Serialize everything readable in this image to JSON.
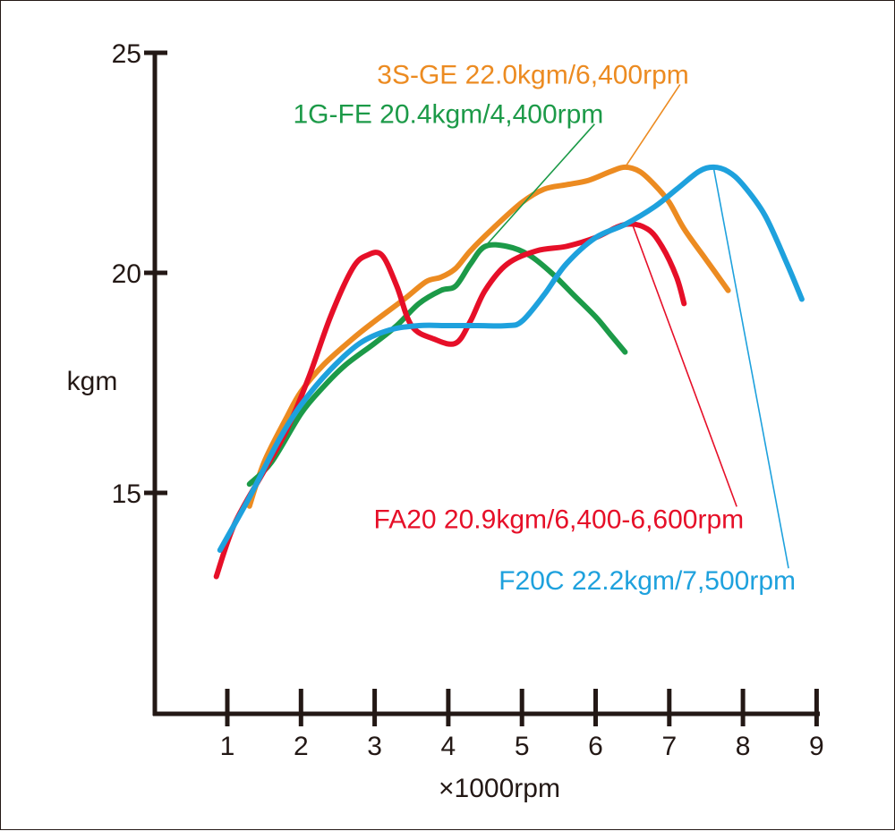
{
  "chart_data": {
    "type": "line",
    "xlabel": "×1000rpm",
    "ylabel": "kgm",
    "xlim": [
      0,
      9
    ],
    "ylim": [
      10,
      25
    ],
    "x_ticks": [
      "1",
      "2",
      "3",
      "4",
      "5",
      "6",
      "7",
      "8",
      "9"
    ],
    "y_ticks": [
      "15",
      "20",
      "25"
    ],
    "grid": false,
    "series": [
      {
        "name": "3S-GE",
        "label": "3S-GE 22.0kgm/6,400rpm",
        "color": "#ec8b21",
        "x": [
          1.3,
          1.5,
          1.8,
          2.0,
          2.3,
          2.7,
          3.0,
          3.4,
          3.7,
          3.9,
          4.1,
          4.3,
          4.6,
          5.0,
          5.3,
          5.6,
          5.9,
          6.2,
          6.4,
          6.6,
          6.8,
          7.0,
          7.2,
          7.5,
          7.8
        ],
        "y": [
          14.7,
          15.7,
          16.7,
          17.3,
          17.9,
          18.5,
          18.9,
          19.4,
          19.8,
          19.9,
          20.1,
          20.5,
          21.0,
          21.6,
          21.9,
          22.0,
          22.1,
          22.3,
          22.4,
          22.3,
          22.0,
          21.6,
          21.0,
          20.3,
          19.6
        ]
      },
      {
        "name": "1G-FE",
        "label": "1G-FE 20.4kgm/4,400rpm",
        "color": "#1c9a48",
        "x": [
          1.3,
          1.6,
          2.0,
          2.3,
          2.6,
          3.0,
          3.3,
          3.6,
          3.9,
          4.1,
          4.3,
          4.5,
          4.8,
          5.1,
          5.4,
          5.7,
          6.0,
          6.2,
          6.4
        ],
        "y": [
          15.2,
          15.7,
          16.8,
          17.4,
          17.9,
          18.4,
          18.8,
          19.3,
          19.6,
          19.7,
          20.2,
          20.6,
          20.6,
          20.4,
          20.0,
          19.5,
          19.0,
          18.6,
          18.2
        ]
      },
      {
        "name": "FA20",
        "label": "FA20 20.9kgm/6,400-6,600rpm",
        "color": "#e60f28",
        "x": [
          0.85,
          1.1,
          1.5,
          1.8,
          2.1,
          2.4,
          2.7,
          2.9,
          3.1,
          3.3,
          3.5,
          3.8,
          4.1,
          4.3,
          4.5,
          4.8,
          5.2,
          5.6,
          6.0,
          6.4,
          6.7,
          6.9,
          7.1,
          7.2
        ],
        "y": [
          13.1,
          14.3,
          15.5,
          16.4,
          17.6,
          19.0,
          20.1,
          20.4,
          20.4,
          19.7,
          18.8,
          18.5,
          18.4,
          18.9,
          19.6,
          20.2,
          20.5,
          20.6,
          20.8,
          21.1,
          21.0,
          20.6,
          19.9,
          19.3
        ]
      },
      {
        "name": "F20C",
        "label": "F20C 22.2kgm/7,500rpm",
        "color": "#1ea1dd",
        "x": [
          0.9,
          1.3,
          1.7,
          2.0,
          2.4,
          2.8,
          3.2,
          3.6,
          4.0,
          4.4,
          4.8,
          5.0,
          5.3,
          5.6,
          6.0,
          6.4,
          6.8,
          7.1,
          7.4,
          7.6,
          7.8,
          8.0,
          8.3,
          8.6,
          8.8
        ],
        "y": [
          13.7,
          14.9,
          16.2,
          17.0,
          17.8,
          18.4,
          18.7,
          18.8,
          18.8,
          18.8,
          18.8,
          18.9,
          19.5,
          20.2,
          20.8,
          21.1,
          21.5,
          21.9,
          22.3,
          22.4,
          22.3,
          22.0,
          21.3,
          20.2,
          19.4
        ]
      }
    ],
    "annotations": [
      {
        "series": "3S-GE",
        "anchor": [
          6.4,
          22.4
        ],
        "text_at": [
          5.15,
          24.3
        ],
        "align": "middle"
      },
      {
        "series": "1G-FE",
        "anchor": [
          4.5,
          20.6
        ],
        "text_at": [
          4.0,
          23.4
        ],
        "align": "middle"
      },
      {
        "series": "FA20",
        "anchor": [
          6.5,
          21.1
        ],
        "text_at": [
          5.5,
          14.2
        ],
        "align": "middle"
      },
      {
        "series": "F20C",
        "anchor": [
          7.6,
          22.4
        ],
        "text_at": [
          6.7,
          12.8
        ],
        "align": "middle"
      }
    ]
  }
}
